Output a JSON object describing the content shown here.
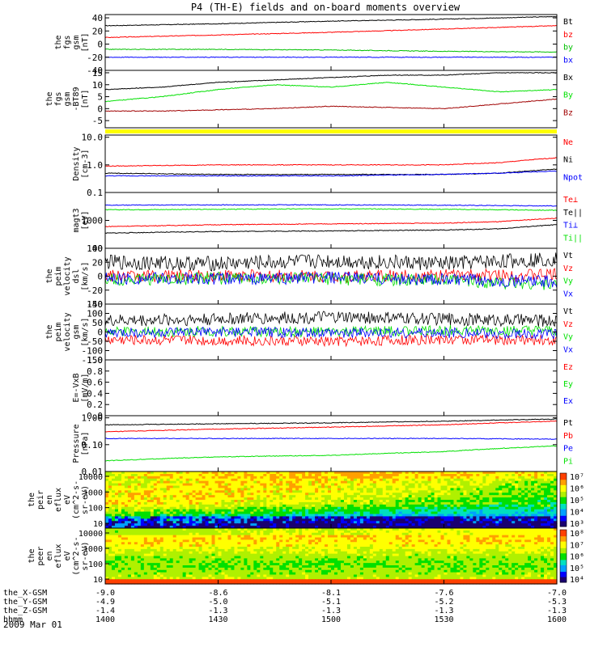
{
  "title": "P4 (TH-E) fields and on-board moments overview",
  "date_label": "2009 Mar 01",
  "colors": {
    "black": "#000000",
    "red": "#ff0000",
    "green": "#00e000",
    "blue": "#0000ff",
    "darkred": "#a00000",
    "yellow": "#ffff00",
    "panel_border": "#000000"
  },
  "chart_data": [
    {
      "id": "fgs",
      "type": "line",
      "ylabel": [
        "the",
        "fgs",
        "gsm",
        "[nT]"
      ],
      "ylim": [
        -40,
        45
      ],
      "ticks": [
        "40",
        "20",
        "0",
        "-20",
        "-40"
      ],
      "tick_values": [
        40,
        20,
        0,
        -20,
        -40
      ],
      "x": [
        1400,
        1430,
        1500,
        1530,
        1600
      ],
      "series": [
        {
          "name": "Bt",
          "color": "#000000",
          "values": [
            28,
            31,
            35,
            38,
            42
          ]
        },
        {
          "name": "bz",
          "color": "#ff0000",
          "values": [
            10,
            14,
            18,
            23,
            28
          ]
        },
        {
          "name": "by",
          "color": "#00c000",
          "values": [
            -8,
            -8,
            -9,
            -11,
            -12
          ]
        },
        {
          "name": "bx",
          "color": "#0000ff",
          "values": [
            -20,
            -20,
            -20,
            -20,
            -20
          ]
        }
      ]
    },
    {
      "id": "fgs_dsl",
      "type": "line",
      "ylabel": [
        "the",
        "fgs",
        "gsm",
        "-BT89",
        "[nT]"
      ],
      "ylim": [
        -8,
        16
      ],
      "ticks": [
        "15",
        "10",
        "5",
        "0",
        "-5"
      ],
      "tick_values": [
        15,
        10,
        5,
        0,
        -5
      ],
      "x": [
        1400,
        1415,
        1430,
        1445,
        1500,
        1515,
        1530,
        1545,
        1600
      ],
      "series": [
        {
          "name": "Bx",
          "color": "#000000",
          "values": [
            8,
            9,
            11,
            12,
            13,
            14,
            14,
            15,
            15
          ]
        },
        {
          "name": "By",
          "color": "#00e000",
          "values": [
            3,
            5,
            8,
            10,
            9,
            11,
            9,
            7,
            8
          ]
        },
        {
          "name": "Bz",
          "color": "#a00000",
          "values": [
            -1,
            -1,
            -0.5,
            0,
            1,
            0.5,
            0,
            2,
            4
          ]
        }
      ]
    },
    {
      "id": "density",
      "type": "line",
      "ylabel": [
        "Density",
        "[cm-3]"
      ],
      "log": true,
      "ylim": [
        0.1,
        12
      ],
      "ticks": [
        "10.0",
        "1.0",
        "0.1"
      ],
      "tick_values": [
        10,
        1,
        0.1
      ],
      "x": [
        1400,
        1430,
        1500,
        1530,
        1545,
        1600
      ],
      "series": [
        {
          "name": "Ne",
          "color": "#ff0000",
          "values": [
            0.9,
            1.0,
            1.0,
            1.0,
            1.2,
            1.8
          ]
        },
        {
          "name": "Ni",
          "color": "#000000",
          "values": [
            0.5,
            0.45,
            0.45,
            0.45,
            0.5,
            0.7
          ]
        },
        {
          "name": "Npot",
          "color": "#0000ff",
          "values": [
            0.4,
            0.4,
            0.4,
            0.45,
            0.5,
            0.6
          ]
        }
      ]
    },
    {
      "id": "temp",
      "type": "line",
      "ylabel": [
        "magt3",
        "[eV]"
      ],
      "log": true,
      "ylim": [
        100,
        10000
      ],
      "ticks": [
        "1000",
        "100"
      ],
      "tick_values": [
        1000,
        100
      ],
      "x": [
        1400,
        1430,
        1500,
        1530,
        1545,
        1600
      ],
      "series": [
        {
          "name": "Te⊥",
          "color": "#ff0000",
          "values": [
            600,
            700,
            750,
            800,
            900,
            1200
          ]
        },
        {
          "name": "Te||",
          "color": "#000000",
          "values": [
            350,
            400,
            420,
            450,
            500,
            700
          ]
        },
        {
          "name": "Ti⊥",
          "color": "#0000ff",
          "values": [
            3500,
            3600,
            3600,
            3500,
            3400,
            3300
          ]
        },
        {
          "name": "Ti||",
          "color": "#00e000",
          "values": [
            2400,
            2500,
            2600,
            2500,
            2400,
            2300
          ]
        }
      ]
    },
    {
      "id": "peim_dsl",
      "type": "line",
      "ylabel": [
        "the",
        "peim",
        "velocity",
        "dsl",
        "[km/s]"
      ],
      "ylim": [
        -40,
        40
      ],
      "ticks": [
        "40",
        "20",
        "0",
        "-20",
        "-40"
      ],
      "tick_values": [
        40,
        20,
        0,
        -20,
        -40
      ],
      "x": [
        1400,
        1430,
        1500,
        1530,
        1600
      ],
      "series": [
        {
          "name": "Vt",
          "color": "#000000",
          "values": [
            20,
            18,
            22,
            18,
            25
          ]
        },
        {
          "name": "Vz",
          "color": "#ff0000",
          "values": [
            0,
            1,
            0,
            1,
            2
          ]
        },
        {
          "name": "Vy",
          "color": "#00e000",
          "values": [
            -5,
            -3,
            -4,
            -6,
            -12
          ]
        },
        {
          "name": "Vx",
          "color": "#0000ff",
          "values": [
            -3,
            -4,
            -2,
            -5,
            -8
          ]
        }
      ]
    },
    {
      "id": "peim_gsm",
      "type": "line",
      "ylabel": [
        "the",
        "peim",
        "velocity",
        "gsm",
        "[km/s]"
      ],
      "ylim": [
        -150,
        150
      ],
      "ticks": [
        "150",
        "100",
        "50",
        "0",
        "-50",
        "-100",
        "-150"
      ],
      "tick_values": [
        150,
        100,
        50,
        0,
        -50,
        -100,
        -150
      ],
      "x": [
        1400,
        1430,
        1500,
        1530,
        1600
      ],
      "series": [
        {
          "name": "Vt",
          "color": "#000000",
          "values": [
            60,
            70,
            80,
            70,
            60
          ]
        },
        {
          "name": "Vz",
          "color": "#ff0000",
          "values": [
            -40,
            -45,
            -50,
            -40,
            -45
          ]
        },
        {
          "name": "Vy",
          "color": "#00e000",
          "values": [
            0,
            5,
            0,
            10,
            5
          ]
        },
        {
          "name": "Vx",
          "color": "#0000ff",
          "values": [
            -5,
            0,
            -5,
            -5,
            -10
          ]
        }
      ]
    },
    {
      "id": "exb",
      "type": "line",
      "ylabel": [
        "E=-VxB",
        "[mV/m]"
      ],
      "ylim": [
        0,
        1
      ],
      "ticks": [
        "1.0",
        "0.8",
        "0.6",
        "0.4",
        "0.2",
        "0.0"
      ],
      "tick_values": [
        1.0,
        0.8,
        0.6,
        0.4,
        0.2,
        0.0
      ],
      "x": [],
      "series": [
        {
          "name": "Ez",
          "color": "#ff0000",
          "values": []
        },
        {
          "name": "Ey",
          "color": "#00e000",
          "values": []
        },
        {
          "name": "Ex",
          "color": "#0000ff",
          "values": []
        }
      ]
    },
    {
      "id": "pressure",
      "type": "line",
      "ylabel": [
        "Pressure",
        "[nPa]"
      ],
      "log": true,
      "ylim": [
        0.01,
        1.2
      ],
      "ticks": [
        "1.00",
        "0.10",
        "0.01"
      ],
      "tick_values": [
        1.0,
        0.1,
        0.01
      ],
      "x": [
        1400,
        1430,
        1500,
        1530,
        1600
      ],
      "series": [
        {
          "name": "Pt",
          "color": "#000000",
          "values": [
            0.55,
            0.6,
            0.65,
            0.75,
            0.9
          ]
        },
        {
          "name": "Pb",
          "color": "#ff0000",
          "values": [
            0.3,
            0.38,
            0.45,
            0.55,
            0.75
          ]
        },
        {
          "name": "Pe",
          "color": "#0000ff",
          "values": [
            0.17,
            0.17,
            0.17,
            0.17,
            0.16
          ]
        },
        {
          "name": "Pi",
          "color": "#00e000",
          "values": [
            0.025,
            0.035,
            0.04,
            0.055,
            0.09
          ]
        }
      ]
    },
    {
      "id": "peir_eflux",
      "type": "heatmap",
      "ylabel": [
        "the",
        "peir",
        "en",
        "eflux",
        "eV",
        "(cm^2-s-",
        "sr-eV)"
      ],
      "ticks": [
        "10000",
        "1000",
        "100",
        "10"
      ],
      "cbar_ticks": [
        "10⁷",
        "10⁶",
        "10⁵",
        "10⁴",
        "10³"
      ]
    },
    {
      "id": "peer_eflux",
      "type": "heatmap",
      "ylabel": [
        "the",
        "peer",
        "en",
        "eflux",
        "eV",
        "(cm^2-s-",
        "sr-eV)"
      ],
      "ticks": [
        "10000",
        "1000",
        "100",
        "10"
      ],
      "cbar_ticks": [
        "10⁸",
        "10⁷",
        "10⁶",
        "10⁵",
        "10⁴"
      ]
    }
  ],
  "xaxis": {
    "rows": [
      {
        "label": "the_X-GSM",
        "values": [
          "-9.0",
          "-8.6",
          "-8.1",
          "-7.6",
          "-7.0"
        ]
      },
      {
        "label": "the_Y-GSM",
        "values": [
          "-4.9",
          "-5.0",
          "-5.1",
          "-5.2",
          "-5.3"
        ]
      },
      {
        "label": "the_Z-GSM",
        "values": [
          "-1.4",
          "-1.3",
          "-1.3",
          "-1.3",
          "-1.3"
        ]
      },
      {
        "label": "hhmm",
        "values": [
          "1400",
          "1430",
          "1500",
          "1530",
          "1600"
        ]
      }
    ]
  }
}
